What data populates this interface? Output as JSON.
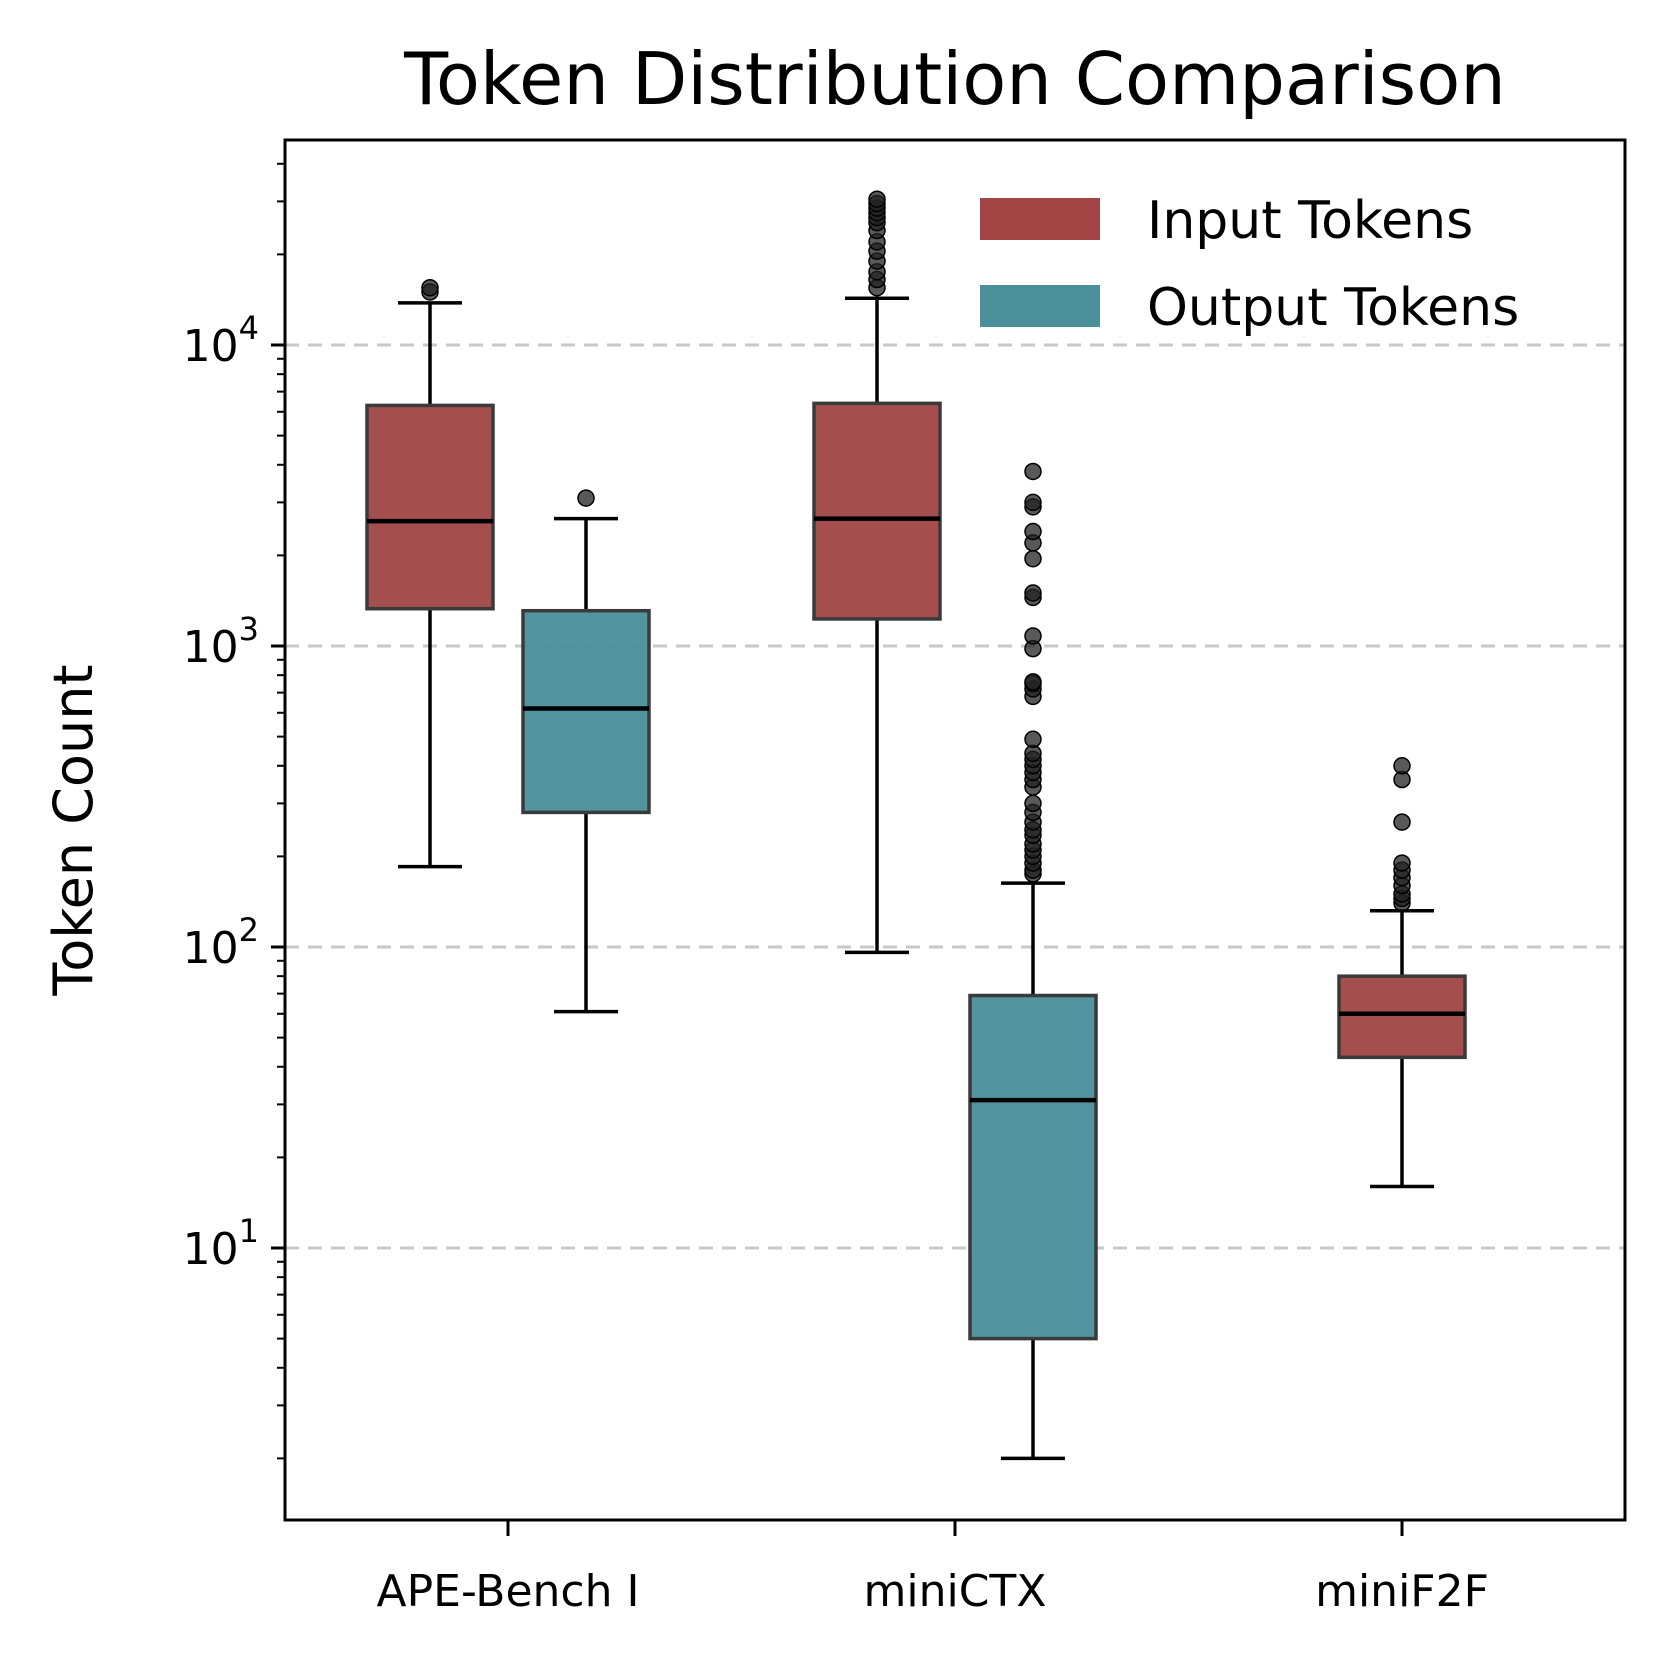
{
  "chart_data": {
    "type": "box",
    "title": "Token Distribution Comparison",
    "xlabel": "",
    "ylabel": "Token Count",
    "yscale": "log",
    "ylim": [
      1.4,
      45000
    ],
    "yticks": [
      {
        "value": 10,
        "base": "10",
        "exp": "1"
      },
      {
        "value": 100,
        "base": "10",
        "exp": "2"
      },
      {
        "value": 1000,
        "base": "10",
        "exp": "3"
      },
      {
        "value": 10000,
        "base": "10",
        "exp": "4"
      }
    ],
    "grid": "y-major-dashed",
    "legend_position": "top-right",
    "categories": [
      "APE-Bench I",
      "miniCTX",
      "miniF2F"
    ],
    "series": [
      {
        "name": "Input Tokens",
        "color": "#a04444",
        "boxes": [
          {
            "category": "APE-Bench I",
            "whisker_low": 185,
            "q1": 1330,
            "median": 2600,
            "q3": 6300,
            "whisker_high": 13800,
            "outliers": [
              15000,
              15500
            ]
          },
          {
            "category": "miniCTX",
            "whisker_low": 96,
            "q1": 1230,
            "median": 2650,
            "q3": 6400,
            "whisker_high": 14300,
            "outliers": [
              15500,
              16500,
              17500,
              19000,
              20500,
              22000,
              24000,
              25500,
              26500,
              27500,
              28500,
              29500,
              30500
            ]
          },
          {
            "category": "miniF2F",
            "whisker_low": 16,
            "q1": 43,
            "median": 60,
            "q3": 80,
            "whisker_high": 132,
            "outliers": [
              140,
              145,
              150,
              160,
              170,
              180,
              190,
              260,
              360,
              400
            ]
          }
        ]
      },
      {
        "name": "Output Tokens",
        "color": "#4a8f99",
        "boxes": [
          {
            "category": "APE-Bench I",
            "whisker_low": 61,
            "q1": 280,
            "median": 620,
            "q3": 1310,
            "whisker_high": 2650,
            "outliers": [
              3100
            ]
          },
          {
            "category": "miniCTX",
            "whisker_low": 2,
            "q1": 5,
            "median": 31,
            "q3": 69,
            "whisker_high": 163,
            "outliers": [
              175,
              180,
              190,
              200,
              210,
              220,
              235,
              245,
              260,
              280,
              300,
              340,
              360,
              380,
              400,
              420,
              440,
              490,
              680,
              720,
              750,
              760,
              980,
              1080,
              1450,
              1500,
              1950,
              2200,
              2400,
              2900,
              3000,
              3800
            ]
          }
        ]
      }
    ]
  }
}
